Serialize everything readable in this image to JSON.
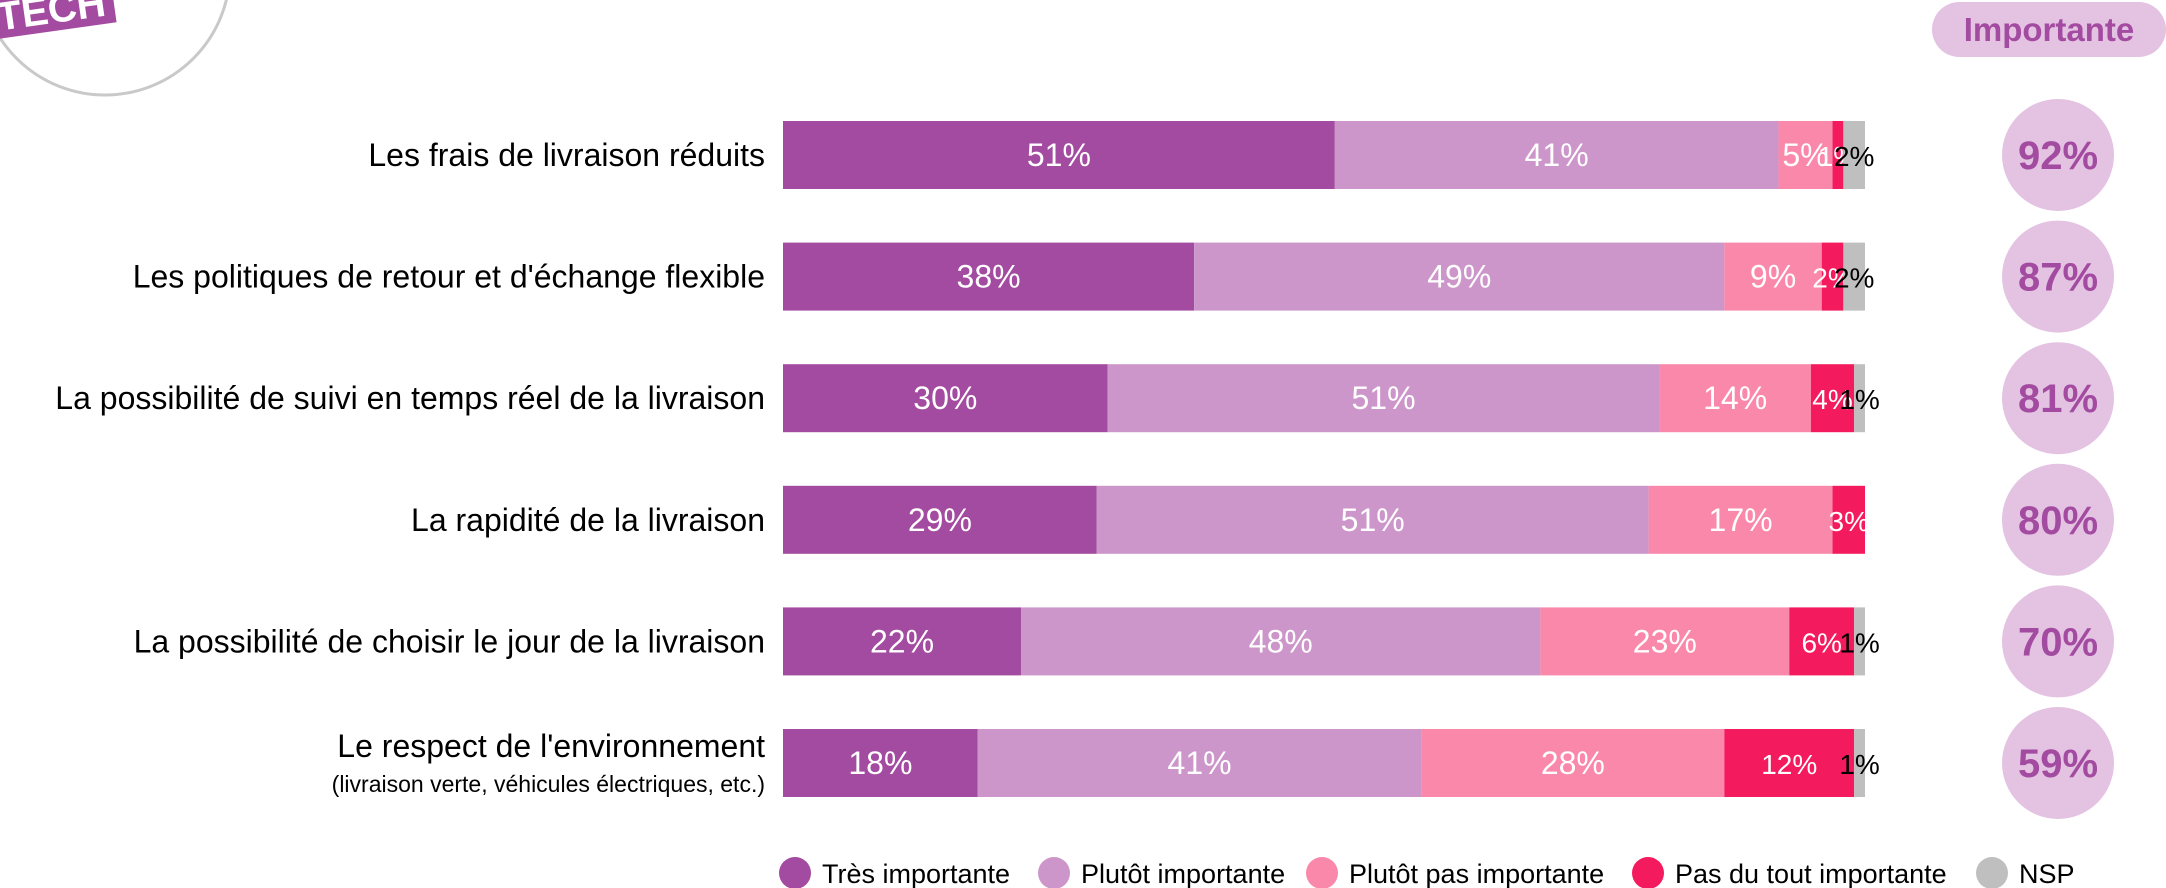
{
  "logo": {
    "text": "TECH"
  },
  "header": {
    "importante_label": "Importante"
  },
  "colors": {
    "tres": "#a34ba0",
    "plutot": "#cc96ca",
    "plutot_pas": "#fa88aa",
    "pas_du_tout": "#f41a5e",
    "nsp": "#bfbfbf",
    "circle": "#e3c2e2",
    "circle_text": "#a34ba0"
  },
  "chart_data": {
    "type": "bar",
    "orientation": "horizontal",
    "stacked": true,
    "xlim": [
      0,
      100
    ],
    "categories": [
      "Les frais de livraison réduits",
      "Les politiques de retour et d'échange flexible",
      "La possibilité de suivi en temps réel de la livraison",
      "La rapidité de la livraison",
      "La possibilité de choisir le jour de la livraison",
      "Le respect de l'environnement"
    ],
    "category_sublabels": [
      "",
      "",
      "",
      "",
      "",
      "(livraison verte, véhicules électriques, etc.)"
    ],
    "series": [
      {
        "name": "Très importante",
        "values": [
          51,
          38,
          30,
          29,
          22,
          18
        ]
      },
      {
        "name": "Plutôt importante",
        "values": [
          41,
          49,
          51,
          51,
          48,
          41
        ]
      },
      {
        "name": "Plutôt pas importante",
        "values": [
          5,
          9,
          14,
          17,
          23,
          28
        ]
      },
      {
        "name": "Pas du tout importante",
        "values": [
          1,
          2,
          4,
          3,
          6,
          12
        ]
      },
      {
        "name": "NSP",
        "values": [
          2,
          2,
          1,
          0,
          1,
          1
        ]
      }
    ],
    "segment_labels": [
      [
        "51%",
        "41%",
        "5%",
        "1%",
        "2%"
      ],
      [
        "38%",
        "49%",
        "9%",
        "2%",
        "2%"
      ],
      [
        "30%",
        "51%",
        "14%",
        "4%",
        "1%"
      ],
      [
        "29%",
        "51%",
        "17%",
        "3%",
        ""
      ],
      [
        "22%",
        "48%",
        "23%",
        "6%",
        "1%"
      ],
      [
        "18%",
        "41%",
        "28%",
        "12%",
        "1%"
      ]
    ],
    "importante_totals": [
      "92%",
      "87%",
      "81%",
      "80%",
      "70%",
      "59%"
    ],
    "legend_position": "bottom"
  }
}
